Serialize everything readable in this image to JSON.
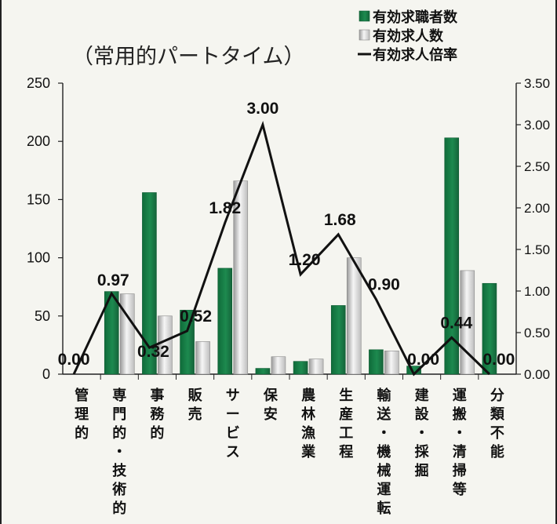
{
  "chart_data": {
    "type": "bar",
    "title": "（常用的パートタイム）",
    "categories": [
      "管理的",
      "専門的・技術的",
      "事務的",
      "販売",
      "サービス",
      "保安",
      "農林漁業",
      "生産工程",
      "輸送・機械運転",
      "建設・採掘",
      "運搬・清掃等",
      "分類不能"
    ],
    "series": [
      {
        "name": "有効求職者数",
        "axis": "left",
        "values": [
          0,
          71,
          156,
          55,
          91,
          5,
          11,
          59,
          21,
          7,
          203,
          78
        ],
        "color": "#1d8a4f"
      },
      {
        "name": "有効求人数",
        "axis": "left",
        "values": [
          0,
          69,
          50,
          28,
          166,
          15,
          13,
          100,
          20,
          0,
          89,
          0
        ],
        "color": "#d8d8d8"
      },
      {
        "name": "有効求人倍率",
        "axis": "right",
        "type": "line",
        "values": [
          0.0,
          0.97,
          0.32,
          0.52,
          1.82,
          3.0,
          1.2,
          1.68,
          0.9,
          0.0,
          0.44,
          0.0
        ],
        "labels": [
          "0.00",
          "0.97",
          "0.32",
          "0.52",
          "1.82",
          "3.00",
          "1.20",
          "1.68",
          "0.90",
          "0.00",
          "0.44",
          "0.00"
        ],
        "color": "#111111"
      }
    ],
    "left_axis": {
      "range": [
        0,
        250
      ],
      "ticks": [
        "0",
        "50",
        "100",
        "150",
        "200",
        "250"
      ]
    },
    "right_axis": {
      "range": [
        0,
        3.5
      ],
      "ticks": [
        "0.00",
        "0.50",
        "1.00",
        "1.50",
        "2.00",
        "2.50",
        "3.00",
        "3.50"
      ]
    },
    "legend": {
      "placement": "top-right",
      "items": [
        "有効求職者数",
        "有効求人数",
        "有効求人倍率"
      ]
    },
    "grid": false
  }
}
